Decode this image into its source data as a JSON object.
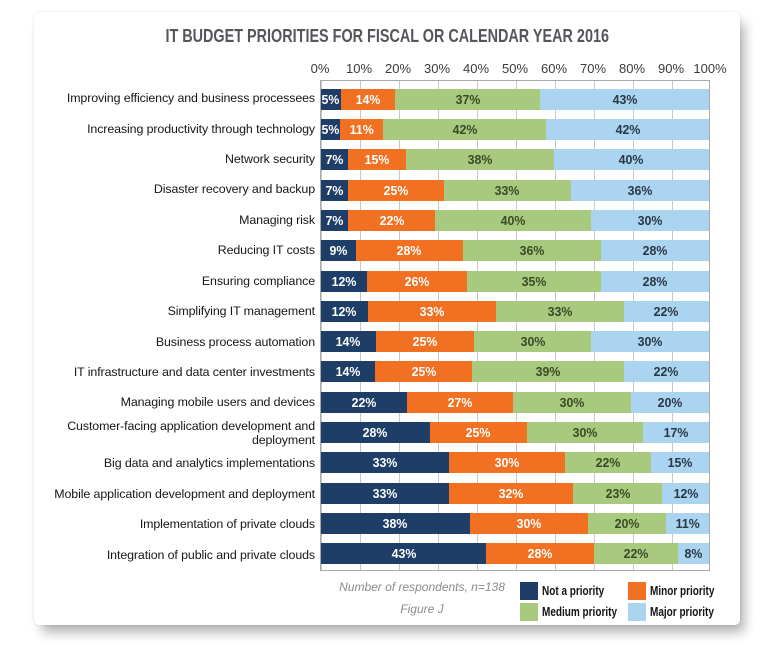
{
  "title": "IT BUDGET PRIORITIES FOR FISCAL OR CALENDAR YEAR 2016",
  "chart_data": {
    "type": "bar",
    "stacked": true,
    "orientation": "horizontal",
    "x_ticks": [
      "0%",
      "10%",
      "20%",
      "30%",
      "40%",
      "50%",
      "60%",
      "70%",
      "80%",
      "90%",
      "100%"
    ],
    "xlim": [
      0,
      100
    ],
    "grid": "vertical",
    "legend_position": "bottom-right",
    "categories": [
      "Improving efficiency and business processees",
      "Increasing productivity through technology",
      "Network security",
      "Disaster recovery and backup",
      "Managing risk",
      "Reducing IT costs",
      "Ensuring compliance",
      "Simplifying IT management",
      "Business process automation",
      "IT infrastructure and data center investments",
      "Managing mobile users and devices",
      "Customer-facing application development and deployment",
      "Big data and analytics implementations",
      "Mobile application development and deployment",
      "Implementation of private clouds",
      "Integration of public and private clouds"
    ],
    "series": [
      {
        "name": "Not a priority",
        "color": "#1e3e68",
        "label_color": "#ffffff",
        "values": [
          5,
          5,
          7,
          7,
          7,
          9,
          12,
          12,
          14,
          14,
          22,
          28,
          33,
          33,
          38,
          43
        ]
      },
      {
        "name": "Minor priority",
        "color": "#f17021",
        "label_color": "#ffffff",
        "values": [
          14,
          11,
          15,
          25,
          22,
          28,
          26,
          33,
          25,
          25,
          27,
          25,
          30,
          32,
          30,
          28
        ]
      },
      {
        "name": "Medium priority",
        "color": "#a7ca7e",
        "label_color": "#3a4a26",
        "values": [
          37,
          42,
          38,
          33,
          40,
          36,
          35,
          33,
          30,
          39,
          30,
          30,
          22,
          23,
          20,
          22
        ]
      },
      {
        "name": "Major priority",
        "color": "#aad4ef",
        "label_color": "#2a3744",
        "values": [
          43,
          42,
          40,
          36,
          30,
          28,
          28,
          22,
          30,
          22,
          20,
          17,
          15,
          12,
          11,
          8
        ]
      }
    ]
  },
  "footer": {
    "note": "Number of respondents, n=138",
    "figure": "Figure J"
  }
}
